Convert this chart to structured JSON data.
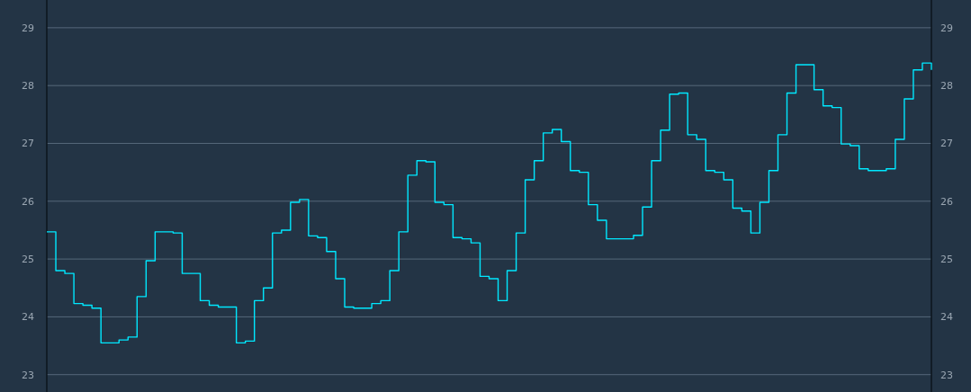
{
  "chart_data": {
    "type": "step",
    "categories": [
      null,
      null,
      null,
      null,
      null,
      null,
      null,
      null,
      null,
      null,
      null,
      null,
      null,
      null,
      null,
      null,
      null,
      null,
      null,
      null,
      null,
      null,
      null,
      null,
      null,
      null,
      null,
      null,
      null,
      null,
      null,
      null,
      null,
      null,
      null,
      null,
      null,
      null,
      null,
      null,
      null,
      null,
      null,
      null,
      null,
      null,
      null,
      null,
      null,
      null,
      null,
      null,
      null,
      null,
      null,
      null,
      null,
      null,
      null,
      null,
      null,
      null,
      null,
      null,
      null,
      null,
      null,
      null,
      null,
      null,
      null,
      null,
      null,
      null,
      null,
      null,
      null,
      null,
      null,
      null,
      null,
      null,
      null,
      null,
      null,
      null,
      null,
      null,
      null,
      null,
      null,
      null,
      null,
      null,
      null,
      null,
      null,
      null,
      null
    ],
    "series": [
      {
        "color": "#00e8ff",
        "values": [
          25.47,
          24.8,
          24.75,
          24.23,
          24.2,
          24.15,
          23.55,
          23.55,
          23.6,
          23.65,
          24.35,
          24.97,
          25.47,
          25.47,
          25.45,
          24.75,
          24.75,
          24.28,
          24.2,
          24.17,
          24.17,
          23.55,
          23.58,
          24.28,
          24.5,
          25.45,
          25.5,
          25.98,
          26.03,
          25.4,
          25.37,
          25.13,
          24.66,
          24.17,
          24.15,
          24.15,
          24.23,
          24.28,
          24.8,
          25.47,
          26.45,
          26.7,
          26.68,
          25.98,
          25.94,
          25.37,
          25.35,
          25.28,
          24.7,
          24.66,
          24.28,
          24.8,
          25.45,
          26.37,
          26.7,
          27.18,
          27.24,
          27.03,
          26.53,
          26.5,
          25.94,
          25.67,
          25.35,
          25.35,
          25.35,
          25.41,
          25.9,
          26.7,
          27.23,
          27.85,
          27.87,
          27.15,
          27.07,
          26.53,
          26.5,
          26.37,
          25.88,
          25.83,
          25.45,
          25.98,
          26.53,
          27.15,
          27.87,
          28.36,
          28.36,
          27.93,
          27.65,
          27.62,
          26.99,
          26.96,
          26.56,
          26.53,
          26.53,
          26.56,
          27.07,
          27.77,
          28.27,
          28.39,
          28.27
        ]
      }
    ],
    "ylim": [
      22.7,
      29.48
    ],
    "yticks": [
      23,
      24,
      25,
      26,
      27,
      28,
      29
    ],
    "y2lim": [
      22.7,
      29.48
    ],
    "y2ticks": [
      23,
      24,
      25,
      26,
      27,
      28,
      29
    ],
    "grid": "y",
    "tick_labels": "y"
  }
}
